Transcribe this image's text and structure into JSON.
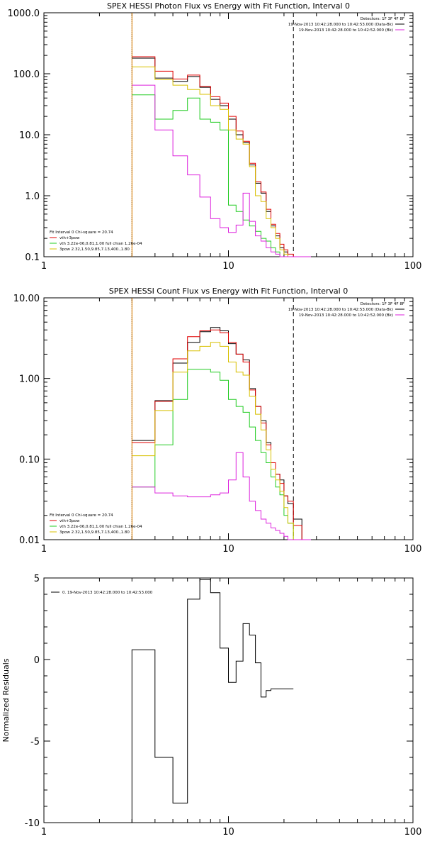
{
  "colors": {
    "black": "#000000",
    "red": "#e00000",
    "green": "#22cc22",
    "yellow": "#d8c000",
    "magenta": "#dd22dd",
    "orange": "#e08000",
    "background": "#ffffff"
  },
  "chart_data": [
    {
      "type": "line",
      "title": "SPEX HESSI Photon Flux vs Energy with Fit Function, Interval 0",
      "xlabel": "",
      "ylabel": "",
      "xscale": "log",
      "yscale": "log",
      "xlim": [
        1,
        100
      ],
      "ylim": [
        0.1,
        1000
      ],
      "grid": false,
      "xticks": [
        1,
        10,
        100
      ],
      "xtick_labels": [
        "1",
        "10",
        "100"
      ],
      "yticks": [
        0.1,
        1,
        10,
        100,
        1000
      ],
      "ytick_labels": [
        "0.1",
        "1.0",
        "10.0",
        "100.0",
        "1000.0"
      ],
      "vlines": [
        {
          "x": 3.0,
          "style": "dotted",
          "color": "#000000"
        },
        {
          "x": 3.0,
          "style": "solid",
          "color": "#e08000"
        },
        {
          "x": 22.5,
          "style": "dashed",
          "color": "#000000"
        }
      ],
      "legend_topright": {
        "position": "top-right",
        "header": "Detectors: 1F 3F 4F 8F",
        "entries": [
          {
            "label": "19-Nov-2013 10:42:28.000 to 10:42:53.000 (Data-Bk)",
            "color": "#000000"
          },
          {
            "label": "19-Nov-2013 10:42:28.000 to 10:42:52.000 (Bk)",
            "color": "#dd22dd"
          }
        ]
      },
      "legend_bottomleft": {
        "position": "bottom-left",
        "header": "Fit Interval 0   Chi-square = 20.74",
        "entries": [
          {
            "label": "vth+3pow",
            "color": "#e00000"
          },
          {
            "label": "vth 3.22e-06,0.81,1.00  full chian 1.26e-04",
            "color": "#22cc22"
          },
          {
            "label": "3pow 2.32,1.50,9.85,7.13,400.,1.80",
            "color": "#d8c000"
          }
        ]
      },
      "edges": [
        3.0,
        4.0,
        5.0,
        6.0,
        7.0,
        8.0,
        9.0,
        10.0,
        11.0,
        12.0,
        13.0,
        14.0,
        15.0,
        16.0,
        17.0,
        18.0,
        19.0,
        20.0,
        21.0,
        22.5,
        25.0,
        28.0
      ],
      "series": [
        {
          "key": "black",
          "color": "#000000",
          "values": [
            180,
            85,
            75,
            90,
            60,
            38,
            30,
            18,
            10,
            7.5,
            3.2,
            1.6,
            1.1,
            0.55,
            0.32,
            0.22,
            0.14,
            0.12,
            0.1,
            0.1,
            0.1
          ]
        },
        {
          "key": "red",
          "color": "#e00000",
          "values": [
            190,
            110,
            82,
            95,
            62,
            42,
            33,
            20,
            11.5,
            7.8,
            3.4,
            1.7,
            1.15,
            0.6,
            0.34,
            0.24,
            0.16,
            0.13,
            0.11,
            0.1,
            0.1
          ]
        },
        {
          "key": "green",
          "color": "#22cc22",
          "values": [
            45,
            18,
            25,
            40,
            18,
            16,
            12,
            0.7,
            0.55,
            0.4,
            0.32,
            0.26,
            0.2,
            0.18,
            0.14,
            0.12,
            0.1,
            0.1,
            0.1,
            0.1,
            0.1
          ]
        },
        {
          "key": "yellow",
          "color": "#d8c000",
          "values": [
            130,
            80,
            65,
            55,
            46,
            30,
            26,
            12,
            8.5,
            7.0,
            3.0,
            1.0,
            0.8,
            0.42,
            0.3,
            0.2,
            0.13,
            0.11,
            0.1,
            0.1,
            0.1
          ]
        },
        {
          "key": "magenta",
          "color": "#dd22dd",
          "values": [
            65,
            12,
            4.5,
            2.2,
            0.95,
            0.42,
            0.3,
            0.25,
            0.33,
            1.1,
            0.38,
            0.22,
            0.18,
            0.14,
            0.12,
            0.11,
            0.1,
            0.1,
            0.1,
            0.1,
            0.1
          ]
        }
      ]
    },
    {
      "type": "line",
      "title": "SPEX HESSI Count Flux vs Energy with Fit Function, Interval 0",
      "xlabel": "",
      "ylabel": "",
      "xscale": "log",
      "yscale": "log",
      "xlim": [
        1,
        100
      ],
      "ylim": [
        0.01,
        10
      ],
      "grid": false,
      "xticks": [
        1,
        10,
        100
      ],
      "xtick_labels": [
        "1",
        "10",
        "100"
      ],
      "yticks": [
        0.01,
        0.1,
        1,
        10
      ],
      "ytick_labels": [
        "0.01",
        "0.10",
        "1.00",
        "10.00"
      ],
      "vlines": [
        {
          "x": 3.0,
          "style": "dotted",
          "color": "#000000"
        },
        {
          "x": 3.0,
          "style": "solid",
          "color": "#e08000"
        },
        {
          "x": 22.5,
          "style": "dashed",
          "color": "#000000"
        }
      ],
      "legend_topright": {
        "position": "top-right",
        "header": "Detectors: 1F 3F 4F 8F",
        "entries": [
          {
            "label": "19-Nov-2013 10:42:28.000 to 10:42:53.000 (Data-Bk)",
            "color": "#000000"
          },
          {
            "label": "19-Nov-2013 10:42:28.000 to 10:42:52.000 (Bk)",
            "color": "#dd22dd"
          }
        ]
      },
      "legend_bottomleft": {
        "position": "bottom-left",
        "header": "Fit Interval 0   Chi-square = 20.74",
        "entries": [
          {
            "label": "vth+3pow",
            "color": "#e00000"
          },
          {
            "label": "vth 3.22e-06,0.81,1.00  full chian 1.26e-04",
            "color": "#22cc22"
          },
          {
            "label": "3pow 2.32,1.50,9.85,7.13,400.,1.80",
            "color": "#d8c000"
          }
        ]
      },
      "edges": [
        3.0,
        4.0,
        5.0,
        6.0,
        7.0,
        8.0,
        9.0,
        10.0,
        11.0,
        12.0,
        13.0,
        14.0,
        15.0,
        16.0,
        17.0,
        18.0,
        19.0,
        20.0,
        21.0,
        22.5,
        25.0,
        28.0
      ],
      "series": [
        {
          "key": "black",
          "color": "#000000",
          "values": [
            0.17,
            0.53,
            1.55,
            2.8,
            3.8,
            4.3,
            3.9,
            2.7,
            2.0,
            1.7,
            0.75,
            0.45,
            0.3,
            0.16,
            0.09,
            0.065,
            0.055,
            0.035,
            0.028,
            0.018,
            0.01
          ]
        },
        {
          "key": "red",
          "color": "#e00000",
          "values": [
            0.16,
            0.52,
            1.75,
            3.3,
            3.9,
            4.0,
            3.7,
            2.8,
            2.0,
            1.6,
            0.72,
            0.45,
            0.28,
            0.15,
            0.09,
            0.065,
            0.05,
            0.035,
            0.03,
            0.015,
            0.01
          ]
        },
        {
          "key": "green",
          "color": "#22cc22",
          "values": [
            0.045,
            0.15,
            0.55,
            1.3,
            1.3,
            1.2,
            0.95,
            0.55,
            0.45,
            0.38,
            0.25,
            0.17,
            0.12,
            0.09,
            0.06,
            0.045,
            0.036,
            0.02,
            0.016,
            0.01,
            0.01
          ]
        },
        {
          "key": "yellow",
          "color": "#d8c000",
          "values": [
            0.11,
            0.4,
            1.2,
            2.2,
            2.5,
            2.8,
            2.5,
            1.6,
            1.2,
            1.1,
            0.6,
            0.36,
            0.23,
            0.13,
            0.075,
            0.055,
            0.04,
            0.025,
            0.016,
            0.01,
            0.01
          ]
        },
        {
          "key": "magenta",
          "color": "#dd22dd",
          "values": [
            0.045,
            0.038,
            0.035,
            0.034,
            0.034,
            0.036,
            0.038,
            0.055,
            0.12,
            0.06,
            0.03,
            0.023,
            0.018,
            0.016,
            0.014,
            0.013,
            0.012,
            0.011,
            0.01,
            0.01,
            0.01
          ]
        }
      ]
    },
    {
      "type": "line",
      "title": "",
      "xlabel": "",
      "ylabel": "Normalized Residuals",
      "xscale": "log",
      "yscale": "linear",
      "xlim": [
        1,
        100
      ],
      "ylim": [
        -10,
        5
      ],
      "grid": false,
      "xticks": [
        1,
        10,
        100
      ],
      "xtick_labels": [
        "1",
        "10",
        "100"
      ],
      "yticks": [
        -10,
        -5,
        0,
        5
      ],
      "ytick_labels": [
        "-10",
        "-5",
        "0",
        "5"
      ],
      "legend": {
        "position": "top-left",
        "label": "0. 19-Nov-2013 10:42:28.000 to 10:42:53.000",
        "color": "#000000"
      },
      "edges": [
        3.0,
        4.0,
        5.0,
        6.0,
        7.0,
        8.0,
        9.0,
        10.0,
        11.0,
        12.0,
        13.0,
        14.0,
        15.0,
        16.0,
        17.0,
        18.0,
        19.0,
        20.0,
        21.0,
        22.5
      ],
      "series": [
        {
          "key": "residuals",
          "color": "#000000",
          "values": [
            0.6,
            -6.0,
            -8.8,
            3.7,
            4.9,
            4.1,
            0.7,
            -1.4,
            -0.1,
            2.2,
            1.5,
            -0.2,
            -2.3,
            -1.9,
            -1.8,
            -1.8,
            -1.8,
            -1.8,
            -1.8
          ]
        }
      ]
    }
  ]
}
